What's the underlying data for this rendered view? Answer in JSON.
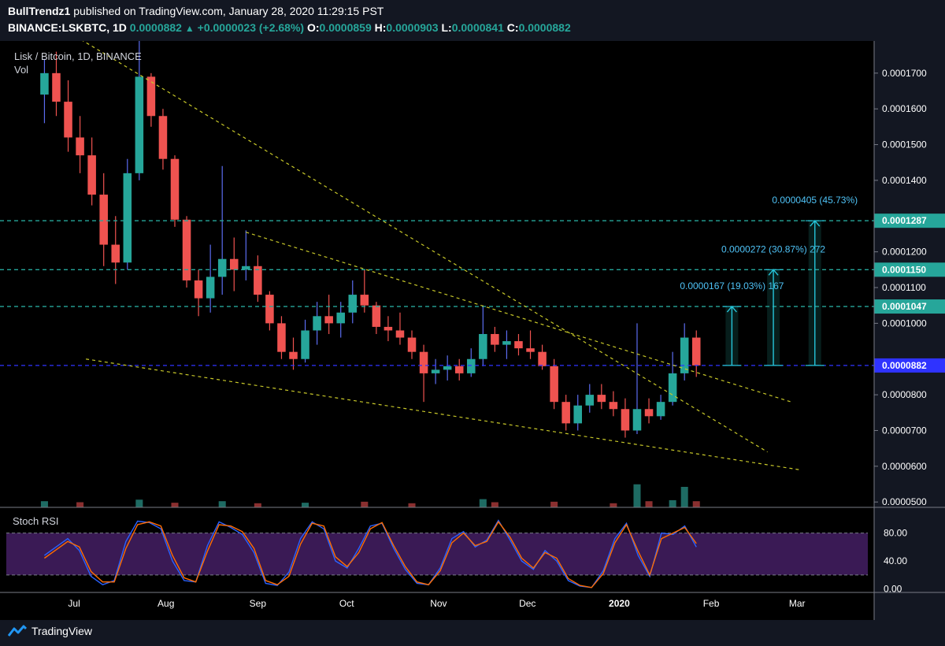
{
  "header": {
    "author": "BullTrendz1",
    "published_text": "published on TradingView.com, January 28, 2020 11:29:15 PST",
    "symbol": "BINANCE:LSKBTC, 1D",
    "price": "0.0000882",
    "change": "+0.0000023 (+2.68%)",
    "ohlc": [
      {
        "label": "O:",
        "value": "0.0000859"
      },
      {
        "label": "H:",
        "value": "0.0000903"
      },
      {
        "label": "L:",
        "value": "0.0000841"
      },
      {
        "label": "C:",
        "value": "0.0000882"
      }
    ]
  },
  "footer": {
    "brand": "TradingView"
  },
  "colors": {
    "background": "#131722",
    "up": "#26a69a",
    "down": "#ef5350",
    "wick_up": "#5b6cf0",
    "blue_line": "#2f33ff",
    "teal_dash": "#26a69a",
    "trend": "#c8c829",
    "stoch_k": "#2962ff",
    "stoch_d": "#ff6d00",
    "stoch_band": "#3a1a55",
    "label_cyan": "#4fc3f7"
  },
  "chart_data": [
    {
      "type": "candlestick",
      "title": "Lisk / Bitcoin, 1D, BINANCE",
      "volume_label": "Vol",
      "x_ticks": [
        "Jul",
        "Aug",
        "Sep",
        "Oct",
        "Nov",
        "Dec",
        "2020",
        "Feb",
        "Mar"
      ],
      "y_ticks": [
        "0.0001700",
        "0.0001600",
        "0.0001500",
        "0.0001400",
        "0.0001200",
        "0.0001100",
        "0.0001000",
        "0.0000800",
        "0.0000700",
        "0.0000600",
        "0.0000500"
      ],
      "ylim": [
        4.85e-05,
        0.000179
      ],
      "ohlc": [
        {
          "d": "2019-06-21",
          "o": 0.000164,
          "h": 0.000174,
          "l": 0.000156,
          "c": 0.00017
        },
        {
          "d": "2019-06-25",
          "o": 0.00017,
          "h": 0.000176,
          "l": 0.000158,
          "c": 0.000162
        },
        {
          "d": "2019-06-29",
          "o": 0.000162,
          "h": 0.000168,
          "l": 0.000148,
          "c": 0.000152
        },
        {
          "d": "2019-07-03",
          "o": 0.000152,
          "h": 0.000158,
          "l": 0.000142,
          "c": 0.000147
        },
        {
          "d": "2019-07-07",
          "o": 0.000147,
          "h": 0.000152,
          "l": 0.000133,
          "c": 0.000136
        },
        {
          "d": "2019-07-11",
          "o": 0.000136,
          "h": 0.000142,
          "l": 0.000116,
          "c": 0.000122
        },
        {
          "d": "2019-07-15",
          "o": 0.000122,
          "h": 0.00013,
          "l": 0.000111,
          "c": 0.000117
        },
        {
          "d": "2019-07-19",
          "o": 0.000117,
          "h": 0.000146,
          "l": 0.000115,
          "c": 0.000142
        },
        {
          "d": "2019-07-23",
          "o": 0.000142,
          "h": 0.000179,
          "l": 0.00014,
          "c": 0.000169
        },
        {
          "d": "2019-07-27",
          "o": 0.000169,
          "h": 0.00017,
          "l": 0.000155,
          "c": 0.000158
        },
        {
          "d": "2019-07-31",
          "o": 0.000158,
          "h": 0.00016,
          "l": 0.000143,
          "c": 0.000146
        },
        {
          "d": "2019-08-04",
          "o": 0.000146,
          "h": 0.000147,
          "l": 0.000127,
          "c": 0.000129
        },
        {
          "d": "2019-08-08",
          "o": 0.000129,
          "h": 0.00013,
          "l": 0.00011,
          "c": 0.000112
        },
        {
          "d": "2019-08-12",
          "o": 0.000112,
          "h": 0.000115,
          "l": 0.000102,
          "c": 0.000107
        },
        {
          "d": "2019-08-16",
          "o": 0.000107,
          "h": 0.000122,
          "l": 0.000103,
          "c": 0.000113
        },
        {
          "d": "2019-08-20",
          "o": 0.000113,
          "h": 0.000144,
          "l": 0.000108,
          "c": 0.000118
        },
        {
          "d": "2019-08-24",
          "o": 0.000118,
          "h": 0.000124,
          "l": 0.000109,
          "c": 0.000115
        },
        {
          "d": "2019-08-28",
          "o": 0.000115,
          "h": 0.000126,
          "l": 0.000112,
          "c": 0.000116
        },
        {
          "d": "2019-09-01",
          "o": 0.000116,
          "h": 0.000119,
          "l": 0.000106,
          "c": 0.000108
        },
        {
          "d": "2019-09-05",
          "o": 0.000108,
          "h": 0.000109,
          "l": 9.8e-05,
          "c": 0.0001
        },
        {
          "d": "2019-09-09",
          "o": 0.0001,
          "h": 0.000102,
          "l": 9e-05,
          "c": 9.2e-05
        },
        {
          "d": "2019-09-13",
          "o": 9.2e-05,
          "h": 9.6e-05,
          "l": 8.7e-05,
          "c": 9e-05
        },
        {
          "d": "2019-09-17",
          "o": 9e-05,
          "h": 0.000101,
          "l": 8.9e-05,
          "c": 9.8e-05
        },
        {
          "d": "2019-09-21",
          "o": 9.8e-05,
          "h": 0.000106,
          "l": 9.4e-05,
          "c": 0.000102
        },
        {
          "d": "2019-09-25",
          "o": 0.000102,
          "h": 0.000108,
          "l": 9.7e-05,
          "c": 0.0001
        },
        {
          "d": "2019-09-29",
          "o": 0.0001,
          "h": 0.000106,
          "l": 9.6e-05,
          "c": 0.000103
        },
        {
          "d": "2019-10-03",
          "o": 0.000103,
          "h": 0.000112,
          "l": 0.0001,
          "c": 0.000108
        },
        {
          "d": "2019-10-07",
          "o": 0.000108,
          "h": 0.000115,
          "l": 0.000103,
          "c": 0.000105
        },
        {
          "d": "2019-10-11",
          "o": 0.000105,
          "h": 0.000106,
          "l": 9.7e-05,
          "c": 9.9e-05
        },
        {
          "d": "2019-10-15",
          "o": 9.9e-05,
          "h": 0.000102,
          "l": 9.5e-05,
          "c": 9.8e-05
        },
        {
          "d": "2019-10-19",
          "o": 9.8e-05,
          "h": 0.000103,
          "l": 9.4e-05,
          "c": 9.6e-05
        },
        {
          "d": "2019-10-23",
          "o": 9.6e-05,
          "h": 9.8e-05,
          "l": 9e-05,
          "c": 9.2e-05
        },
        {
          "d": "2019-10-27",
          "o": 9.2e-05,
          "h": 9.4e-05,
          "l": 7.8e-05,
          "c": 8.6e-05
        },
        {
          "d": "2019-10-31",
          "o": 8.6e-05,
          "h": 9e-05,
          "l": 8.3e-05,
          "c": 8.7e-05
        },
        {
          "d": "2019-11-04",
          "o": 8.7e-05,
          "h": 9.1e-05,
          "l": 8.4e-05,
          "c": 8.8e-05
        },
        {
          "d": "2019-11-08",
          "o": 8.8e-05,
          "h": 9e-05,
          "l": 8.4e-05,
          "c": 8.6e-05
        },
        {
          "d": "2019-11-12",
          "o": 8.6e-05,
          "h": 9.3e-05,
          "l": 8.5e-05,
          "c": 9e-05
        },
        {
          "d": "2019-11-16",
          "o": 9e-05,
          "h": 0.000105,
          "l": 8.8e-05,
          "c": 9.7e-05
        },
        {
          "d": "2019-11-20",
          "o": 9.7e-05,
          "h": 9.9e-05,
          "l": 9.2e-05,
          "c": 9.4e-05
        },
        {
          "d": "2019-11-24",
          "o": 9.4e-05,
          "h": 9.8e-05,
          "l": 9e-05,
          "c": 9.5e-05
        },
        {
          "d": "2019-11-28",
          "o": 9.5e-05,
          "h": 9.7e-05,
          "l": 9.1e-05,
          "c": 9.3e-05
        },
        {
          "d": "2019-12-02",
          "o": 9.3e-05,
          "h": 9.8e-05,
          "l": 9e-05,
          "c": 9.2e-05
        },
        {
          "d": "2019-12-06",
          "o": 9.2e-05,
          "h": 9.4e-05,
          "l": 8.7e-05,
          "c": 8.8e-05
        },
        {
          "d": "2019-12-10",
          "o": 8.8e-05,
          "h": 9e-05,
          "l": 7.6e-05,
          "c": 7.8e-05
        },
        {
          "d": "2019-12-14",
          "o": 7.8e-05,
          "h": 8e-05,
          "l": 7e-05,
          "c": 7.2e-05
        },
        {
          "d": "2019-12-18",
          "o": 7.2e-05,
          "h": 8e-05,
          "l": 7e-05,
          "c": 7.7e-05
        },
        {
          "d": "2019-12-22",
          "o": 7.7e-05,
          "h": 8.3e-05,
          "l": 7.5e-05,
          "c": 8e-05
        },
        {
          "d": "2019-12-26",
          "o": 8e-05,
          "h": 8.3e-05,
          "l": 7.6e-05,
          "c": 7.8e-05
        },
        {
          "d": "2019-12-30",
          "o": 7.8e-05,
          "h": 8.1e-05,
          "l": 7.4e-05,
          "c": 7.6e-05
        },
        {
          "d": "2020-01-03",
          "o": 7.6e-05,
          "h": 7.9e-05,
          "l": 6.8e-05,
          "c": 7e-05
        },
        {
          "d": "2020-01-07",
          "o": 7e-05,
          "h": 0.0001,
          "l": 6.9e-05,
          "c": 7.6e-05
        },
        {
          "d": "2020-01-11",
          "o": 7.6e-05,
          "h": 7.9e-05,
          "l": 7.2e-05,
          "c": 7.4e-05
        },
        {
          "d": "2020-01-15",
          "o": 7.4e-05,
          "h": 8e-05,
          "l": 7.3e-05,
          "c": 7.8e-05
        },
        {
          "d": "2020-01-19",
          "o": 7.8e-05,
          "h": 9.2e-05,
          "l": 7.7e-05,
          "c": 8.6e-05
        },
        {
          "d": "2020-01-23",
          "o": 8.6e-05,
          "h": 0.0001,
          "l": 8.4e-05,
          "c": 9.6e-05
        },
        {
          "d": "2020-01-27",
          "o": 9.6e-05,
          "h": 9.8e-05,
          "l": 8.5e-05,
          "c": 8.82e-05
        }
      ],
      "volume": [
        {
          "d": "2019-06-21",
          "v": 12
        },
        {
          "d": "2019-07-03",
          "v": 10
        },
        {
          "d": "2019-07-23",
          "v": 15
        },
        {
          "d": "2019-08-04",
          "v": 9
        },
        {
          "d": "2019-08-20",
          "v": 12
        },
        {
          "d": "2019-09-01",
          "v": 8
        },
        {
          "d": "2019-09-17",
          "v": 9
        },
        {
          "d": "2019-10-07",
          "v": 11
        },
        {
          "d": "2019-10-23",
          "v": 8
        },
        {
          "d": "2019-11-16",
          "v": 16
        },
        {
          "d": "2019-11-20",
          "v": 10
        },
        {
          "d": "2019-12-10",
          "v": 11
        },
        {
          "d": "2019-12-30",
          "v": 8
        },
        {
          "d": "2020-01-07",
          "v": 45
        },
        {
          "d": "2020-01-11",
          "v": 12
        },
        {
          "d": "2020-01-19",
          "v": 14
        },
        {
          "d": "2020-01-23",
          "v": 40
        },
        {
          "d": "2020-01-27",
          "v": 12
        }
      ],
      "horizontal_levels": [
        {
          "label": "0.0001287",
          "value": 0.0001287
        },
        {
          "label": "0.0001150",
          "value": 0.000115
        },
        {
          "label": "0.0001047",
          "value": 0.0001047
        },
        {
          "label": "0.0000882",
          "value": 8.82e-05
        }
      ],
      "trendlines": [
        {
          "from": [
            "2019-06-06",
            0.000193
          ],
          "to": [
            "2020-02-20",
            6.4e-05
          ]
        },
        {
          "from": [
            "2019-08-28",
            0.0001255
          ],
          "to": [
            "2020-02-28",
            7.8e-05
          ]
        },
        {
          "from": [
            "2019-07-05",
            9e-05
          ],
          "to": [
            "2020-03-02",
            5.9e-05
          ]
        }
      ],
      "measurements": [
        {
          "date": "2020-02-08",
          "from": 8.82e-05,
          "to": 0.0001047,
          "label": "0.0000167 (19.03%) 167"
        },
        {
          "date": "2020-02-22",
          "from": 8.82e-05,
          "to": 0.000115,
          "label": "0.0000272 (30.87%) 272"
        },
        {
          "date": "2020-03-07",
          "from": 8.82e-05,
          "to": 0.0001287,
          "label": "0.0000405 (45.73%)"
        }
      ]
    },
    {
      "type": "line",
      "title": "Stoch RSI",
      "y_ticks": [
        "80.00",
        "40.00",
        "0.00"
      ],
      "ylim": [
        -5,
        110
      ],
      "band": [
        20,
        80
      ],
      "series": [
        {
          "values": [
            48,
            60,
            72,
            55,
            18,
            6,
            12,
            68,
            97,
            95,
            86,
            40,
            12,
            10,
            62,
            96,
            88,
            78,
            52,
            8,
            5,
            24,
            72,
            96,
            86,
            40,
            30,
            58,
            90,
            94,
            58,
            28,
            8,
            6,
            30,
            72,
            82,
            60,
            70,
            98,
            70,
            40,
            28,
            55,
            40,
            12,
            4,
            2,
            26,
            72,
            94,
            48,
            18,
            80,
            78,
            90,
            60
          ]
        },
        {
          "values": [
            44,
            56,
            68,
            60,
            25,
            10,
            10,
            58,
            92,
            96,
            90,
            48,
            16,
            10,
            54,
            92,
            90,
            82,
            58,
            12,
            6,
            18,
            64,
            94,
            90,
            46,
            32,
            52,
            86,
            95,
            62,
            32,
            10,
            6,
            26,
            66,
            80,
            62,
            68,
            96,
            74,
            44,
            30,
            52,
            44,
            15,
            5,
            2,
            22,
            66,
            92,
            54,
            20,
            72,
            80,
            88,
            65
          ]
        }
      ]
    }
  ]
}
